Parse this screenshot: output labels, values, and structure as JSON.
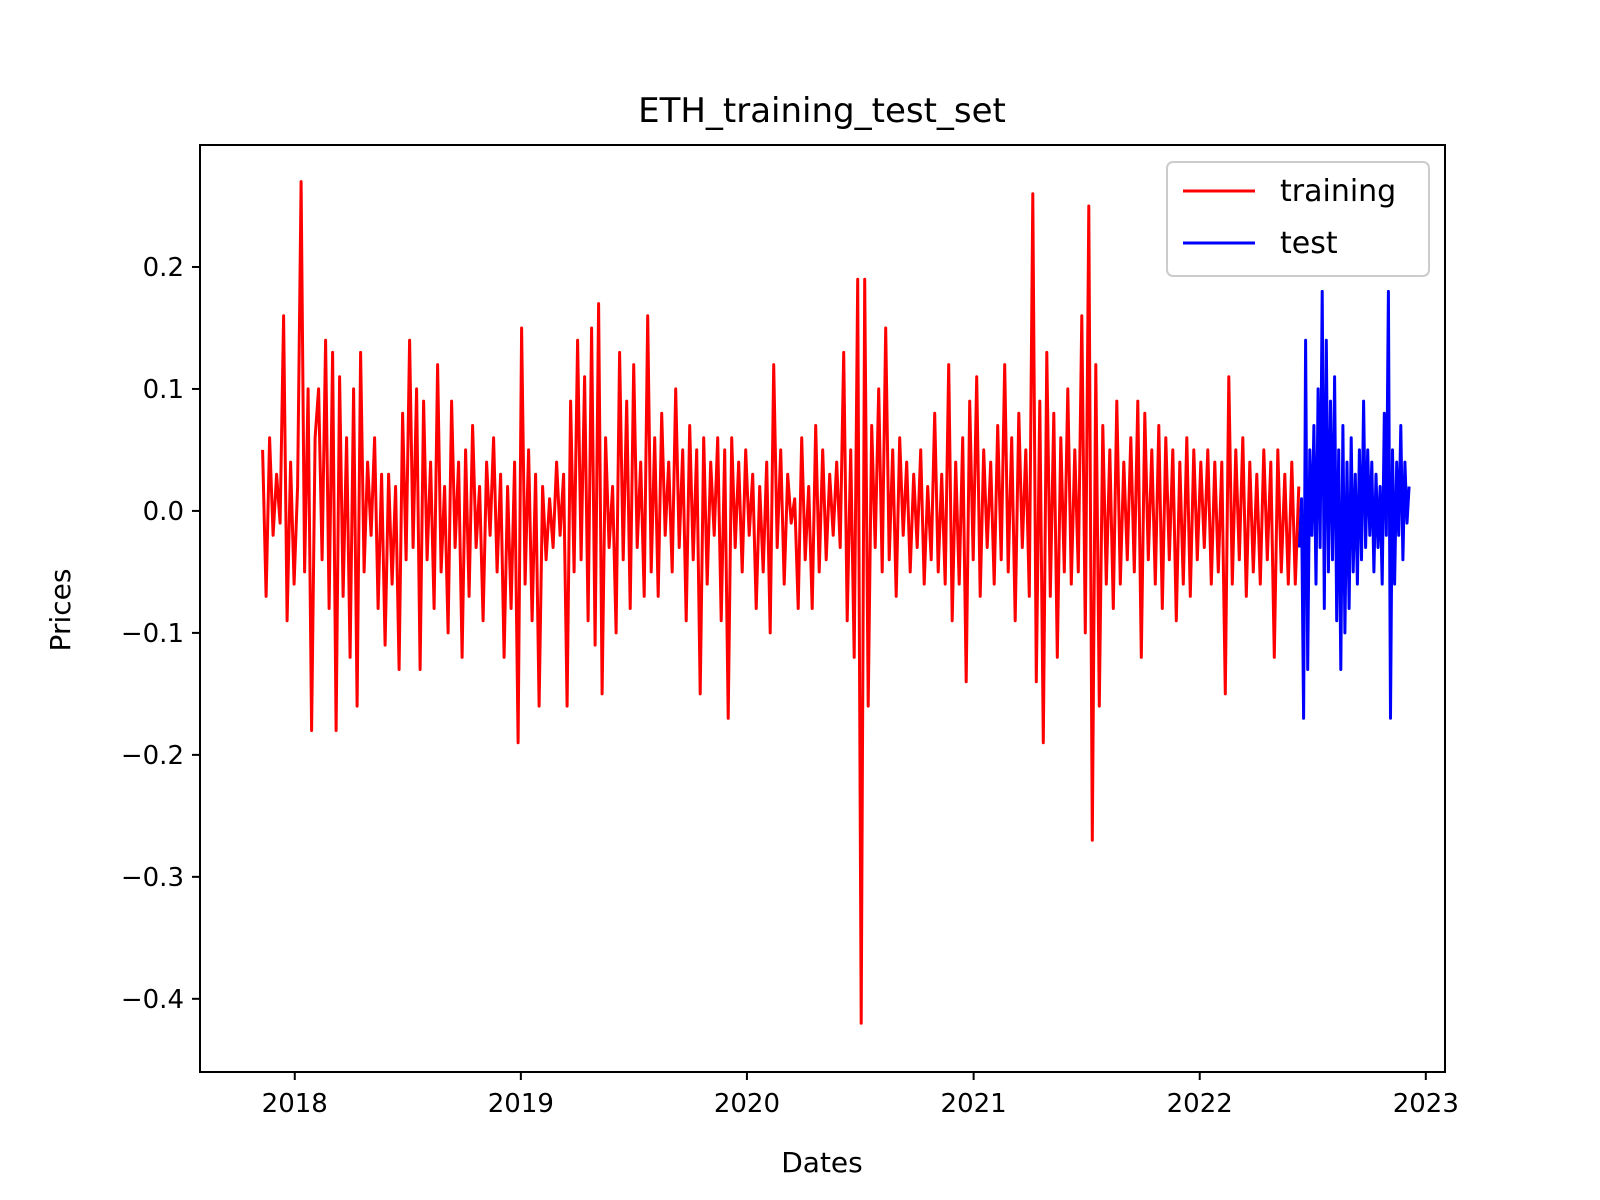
{
  "chart_data": {
    "type": "line",
    "title": "ETH_training_test_set",
    "xlabel": "Dates",
    "ylabel": "Prices",
    "xlim": [
      "2017-08-01",
      "2023-02-01"
    ],
    "ylim": [
      -0.46,
      0.3
    ],
    "x_ticks": [
      "2018",
      "2019",
      "2020",
      "2021",
      "2022",
      "2023"
    ],
    "y_ticks": [
      0.2,
      0.1,
      0.0,
      -0.1,
      -0.2,
      -0.3,
      -0.4
    ],
    "y_tick_labels": [
      "0.2",
      "0.1",
      "0.0",
      "−0.1",
      "−0.2",
      "−0.3",
      "−0.4"
    ],
    "legend": {
      "position": "top-right",
      "entries": [
        "training",
        "test"
      ]
    },
    "grid": false,
    "series": [
      {
        "name": "training",
        "color": "#ff0000",
        "x_start": "2017-11-10",
        "x_end": "2022-06-10",
        "values": [
          0.05,
          -0.07,
          0.06,
          -0.02,
          0.03,
          -0.01,
          0.16,
          -0.09,
          0.04,
          -0.06,
          0.02,
          0.27,
          -0.05,
          0.1,
          -0.18,
          0.06,
          0.1,
          -0.04,
          0.14,
          -0.08,
          0.13,
          -0.18,
          0.11,
          -0.07,
          0.06,
          -0.12,
          0.1,
          -0.16,
          0.13,
          -0.05,
          0.04,
          -0.02,
          0.06,
          -0.08,
          0.03,
          -0.11,
          0.03,
          -0.06,
          0.02,
          -0.13,
          0.08,
          -0.04,
          0.14,
          -0.03,
          0.1,
          -0.13,
          0.09,
          -0.04,
          0.04,
          -0.08,
          0.12,
          -0.05,
          0.02,
          -0.1,
          0.09,
          -0.03,
          0.04,
          -0.12,
          0.05,
          -0.07,
          0.07,
          -0.03,
          0.02,
          -0.09,
          0.04,
          -0.02,
          0.06,
          -0.05,
          0.03,
          -0.12,
          0.02,
          -0.08,
          0.04,
          -0.19,
          0.15,
          -0.06,
          0.05,
          -0.09,
          0.03,
          -0.16,
          0.02,
          -0.04,
          0.01,
          -0.03,
          0.04,
          -0.02,
          0.03,
          -0.16,
          0.09,
          -0.05,
          0.14,
          -0.04,
          0.11,
          -0.09,
          0.15,
          -0.11,
          0.17,
          -0.15,
          0.06,
          -0.03,
          0.02,
          -0.1,
          0.13,
          -0.04,
          0.09,
          -0.08,
          0.12,
          -0.03,
          0.04,
          -0.07,
          0.16,
          -0.05,
          0.06,
          -0.07,
          0.08,
          -0.02,
          0.04,
          -0.05,
          0.1,
          -0.03,
          0.05,
          -0.09,
          0.07,
          -0.04,
          0.05,
          -0.15,
          0.06,
          -0.06,
          0.04,
          -0.02,
          0.06,
          -0.09,
          0.05,
          -0.17,
          0.06,
          -0.03,
          0.04,
          -0.05,
          0.05,
          -0.02,
          0.03,
          -0.08,
          0.02,
          -0.05,
          0.04,
          -0.1,
          0.12,
          -0.03,
          0.05,
          -0.06,
          0.03,
          -0.01,
          0.01,
          -0.08,
          0.06,
          -0.04,
          0.02,
          -0.08,
          0.07,
          -0.05,
          0.05,
          -0.04,
          0.03,
          -0.02,
          0.04,
          -0.03,
          0.13,
          -0.09,
          0.05,
          -0.12,
          0.19,
          -0.42,
          0.19,
          -0.16,
          0.07,
          -0.03,
          0.1,
          -0.05,
          0.15,
          -0.04,
          0.05,
          -0.07,
          0.06,
          -0.02,
          0.04,
          -0.05,
          0.03,
          -0.03,
          0.05,
          -0.06,
          0.02,
          -0.04,
          0.08,
          -0.05,
          0.03,
          -0.06,
          0.12,
          -0.09,
          0.04,
          -0.06,
          0.06,
          -0.14,
          0.09,
          -0.04,
          0.11,
          -0.07,
          0.05,
          -0.03,
          0.04,
          -0.06,
          0.07,
          -0.04,
          0.12,
          -0.05,
          0.06,
          -0.09,
          0.08,
          -0.03,
          0.05,
          -0.07,
          0.26,
          -0.14,
          0.09,
          -0.19,
          0.13,
          -0.07,
          0.08,
          -0.12,
          0.06,
          -0.05,
          0.1,
          -0.06,
          0.05,
          -0.05,
          0.16,
          -0.1,
          0.25,
          -0.27,
          0.12,
          -0.16,
          0.07,
          -0.06,
          0.05,
          -0.08,
          0.09,
          -0.06,
          0.04,
          -0.04,
          0.06,
          -0.05,
          0.09,
          -0.12,
          0.08,
          -0.04,
          0.05,
          -0.06,
          0.07,
          -0.08,
          0.06,
          -0.04,
          0.05,
          -0.09,
          0.04,
          -0.06,
          0.06,
          -0.07,
          0.05,
          -0.04,
          0.04,
          -0.03,
          0.05,
          -0.06,
          0.04,
          -0.05,
          0.04,
          -0.15,
          0.11,
          -0.06,
          0.05,
          -0.04,
          0.06,
          -0.07,
          0.04,
          -0.05,
          0.03,
          -0.06,
          0.05,
          -0.04,
          0.04,
          -0.12,
          0.05,
          -0.05,
          0.03,
          -0.06,
          0.04,
          -0.06,
          0.02
        ]
      },
      {
        "name": "test",
        "color": "#0000ff",
        "x_start": "2022-06-11",
        "x_end": "2022-12-05",
        "values": [
          -0.03,
          0.01,
          -0.17,
          0.14,
          -0.13,
          0.05,
          -0.02,
          0.07,
          -0.06,
          0.1,
          -0.03,
          0.18,
          -0.08,
          0.14,
          -0.05,
          0.09,
          -0.04,
          0.11,
          -0.09,
          0.05,
          -0.13,
          0.07,
          -0.1,
          0.04,
          -0.08,
          0.06,
          -0.05,
          0.03,
          -0.06,
          0.05,
          -0.04,
          0.09,
          -0.03,
          0.05,
          -0.02,
          0.04,
          -0.05,
          0.03,
          -0.03,
          0.02,
          -0.06,
          0.08,
          -0.02,
          0.18,
          -0.17,
          0.05,
          -0.06,
          0.04,
          -0.02,
          0.07,
          -0.04,
          0.04,
          -0.01,
          0.02
        ]
      }
    ]
  }
}
